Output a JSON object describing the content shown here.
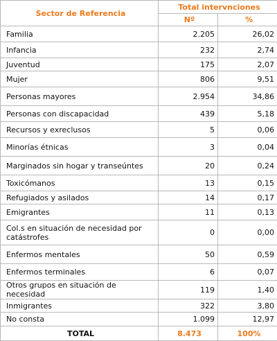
{
  "header": {
    "sector": "Sector de Referencia",
    "total": "Total intervnciones",
    "n_label": "Nº",
    "pct_label": "%"
  },
  "rows": [
    {
      "label": "Familia",
      "n": "2.205",
      "pct": "26,02"
    },
    {
      "label": "Infancia",
      "n": "232",
      "pct": "2,74"
    },
    {
      "label": "Juventud",
      "n": "175",
      "pct": "2,07"
    },
    {
      "label": "Mujer",
      "n": "806",
      "pct": "9,51"
    },
    {
      "label": "Personas mayores",
      "n": "2.954",
      "pct": "34,86"
    },
    {
      "label": "Personas con discapacidad",
      "n": "439",
      "pct": "5,18"
    },
    {
      "label": "Recursos y exreclusos",
      "n": "5",
      "pct": "0,06"
    },
    {
      "label": "Minorías étnicas",
      "n": "3",
      "pct": "0,04"
    },
    {
      "label": "Marginados sin hogar y transeúntes",
      "n": "20",
      "pct": "0,24"
    },
    {
      "label": "Toxicómanos",
      "n": "13",
      "pct": "0,15"
    },
    {
      "label": "Refugiados y asilados",
      "n": "14",
      "pct": "0,17"
    },
    {
      "label": "Emigrantes",
      "n": "11",
      "pct": "0,13"
    },
    {
      "label": "Col.s en situación de necesidad por catástrofes",
      "n": "0",
      "pct": "0,00"
    },
    {
      "label": "Enfermos mentales",
      "n": "50",
      "pct": "0,59"
    },
    {
      "label": "Enfermos terminales",
      "n": "6",
      "pct": "0,07"
    },
    {
      "label": "Otros grupos en situación de necesidad",
      "n": "119",
      "pct": "1,40"
    },
    {
      "label": "Inmigrantes",
      "n": "322",
      "pct": "3,80"
    },
    {
      "label": "No consta",
      "n": "1.099",
      "pct": "12,97"
    }
  ],
  "total_row": {
    "label": "TOTAL",
    "n": "8.473",
    "pct": "100%"
  },
  "colors": {
    "accent": "#ec7a1e",
    "border": "#b8b8b8"
  }
}
